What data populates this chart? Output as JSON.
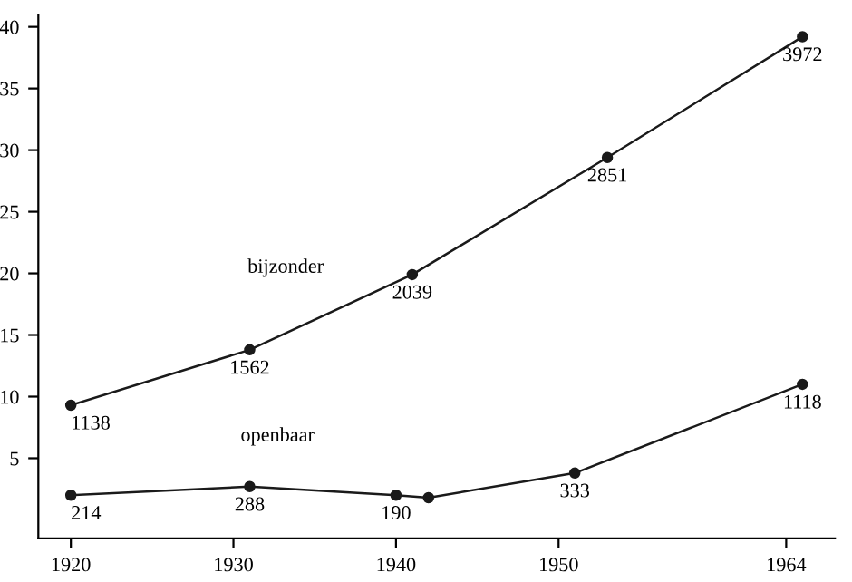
{
  "chart_data": {
    "type": "line",
    "xlim": [
      1918,
      1967
    ],
    "xticks": [
      1920,
      1930,
      1940,
      1950,
      1964
    ],
    "ylim": [
      -1.5,
      41
    ],
    "yticks": [
      5,
      10,
      15,
      20,
      25,
      30,
      35,
      40
    ],
    "grid": false,
    "legend": false,
    "marker": "circle",
    "line_style": "solid",
    "series": [
      {
        "name": "bijzonder",
        "color": "#1a1a1a",
        "x": [
          1920,
          1931,
          1941,
          1953,
          1965
        ],
        "values": [
          9.3,
          13.8,
          19.9,
          29.4,
          39.2
        ]
      },
      {
        "name": "openbaar",
        "color": "#1a1a1a",
        "x": [
          1920,
          1931,
          1940,
          1942,
          1951,
          1965
        ],
        "values": [
          2.0,
          2.7,
          2.0,
          1.8,
          3.8,
          11.0
        ]
      }
    ],
    "annotations": [
      {
        "text": "1138",
        "x": 1920,
        "y": 9.3
      },
      {
        "text": "1562",
        "x": 1931,
        "y": 13.8
      },
      {
        "text": "2039",
        "x": 1941,
        "y": 19.9
      },
      {
        "text": "2851",
        "x": 1953,
        "y": 29.4
      },
      {
        "text": "3972",
        "x": 1965,
        "y": 39.2
      },
      {
        "text": "214",
        "x": 1920,
        "y": 2.0
      },
      {
        "text": "288",
        "x": 1931,
        "y": 2.7
      },
      {
        "text": "190",
        "x": 1940,
        "y": 2.0
      },
      {
        "text": "333",
        "x": 1951,
        "y": 3.8
      },
      {
        "text": "1118",
        "x": 1965,
        "y": 11.0
      }
    ]
  }
}
